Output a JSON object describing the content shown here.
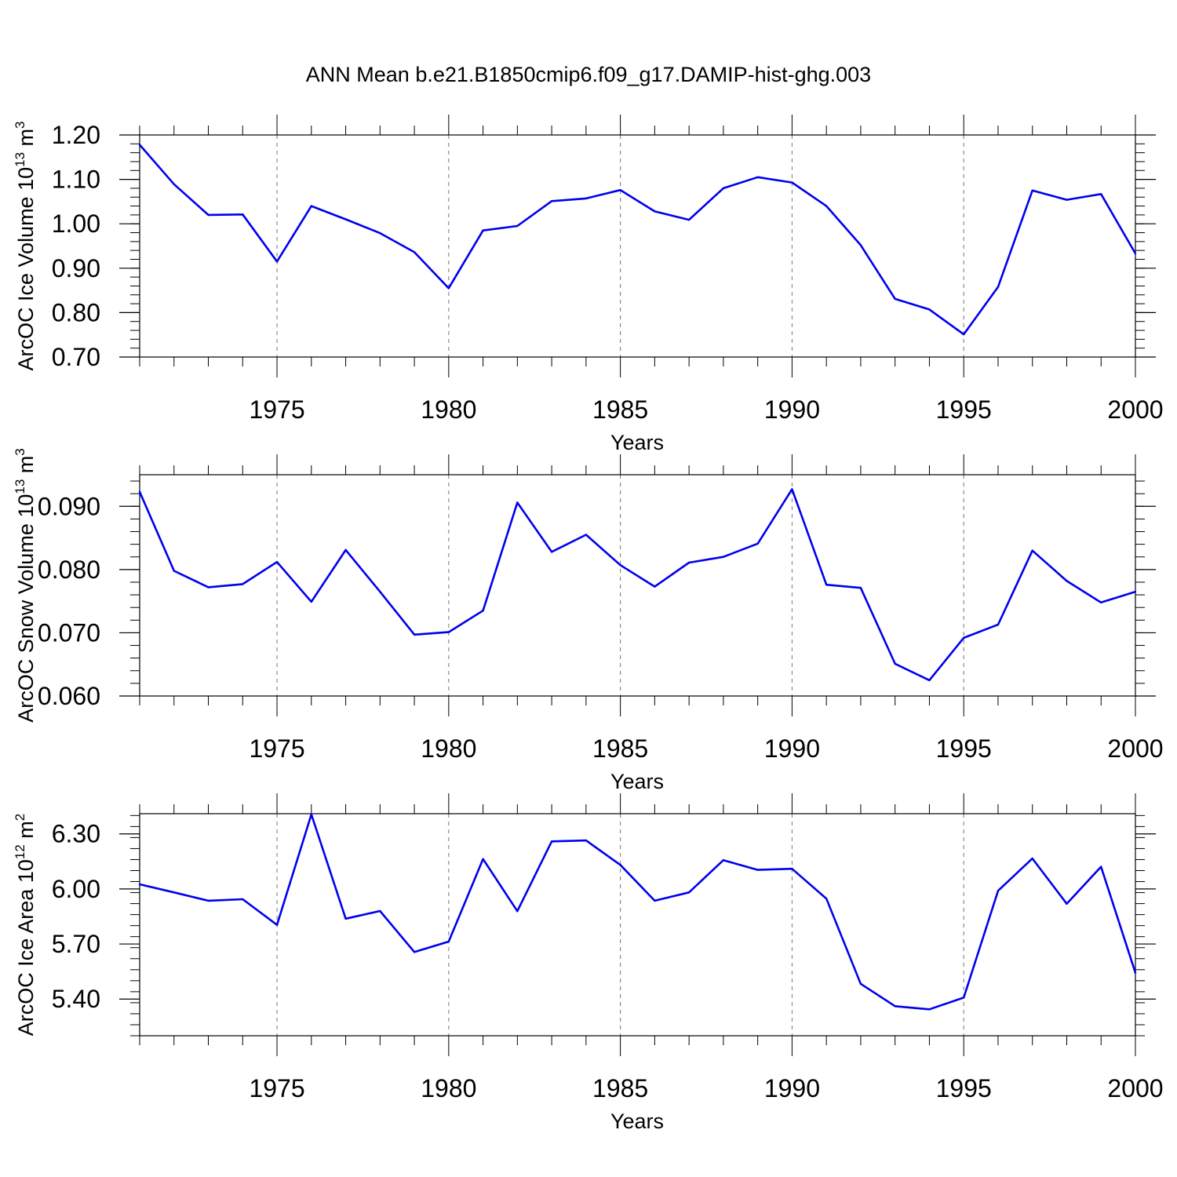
{
  "title": "ANN Mean b.e21.B1850cmip6.f09_g17.DAMIP-hist-ghg.003",
  "chart_data": [
    {
      "type": "line",
      "xlabel": "Years",
      "ylabel": {
        "text": "ArcOC Ice Volume 10",
        "exp": "13",
        "unit": " m",
        "unit_exp": "3"
      },
      "xlim": [
        1971,
        2000
      ],
      "ylim": [
        0.7,
        1.2
      ],
      "yticks": [
        0.7,
        0.8,
        0.9,
        1.0,
        1.1,
        1.2
      ],
      "ytick_labels": [
        "0.70",
        "0.80",
        "0.90",
        "1.00",
        "1.10",
        "1.20"
      ],
      "yminor_step": 0.02,
      "xticks": [
        1975,
        1980,
        1985,
        1990,
        1995,
        2000
      ],
      "xtick_labels": [
        "1975",
        "1980",
        "1985",
        "1990",
        "1995",
        "2000"
      ],
      "grid": "vertical dashed at major x ticks",
      "color": "#0000ee",
      "x": [
        1971,
        1972,
        1973,
        1974,
        1975,
        1976,
        1977,
        1978,
        1979,
        1980,
        1981,
        1982,
        1983,
        1984,
        1985,
        1986,
        1987,
        1988,
        1989,
        1990,
        1991,
        1992,
        1993,
        1994,
        1995,
        1996,
        1997,
        1998,
        1999,
        2000
      ],
      "values": [
        1.178,
        1.089,
        1.02,
        1.021,
        0.915,
        1.04,
        1.01,
        0.979,
        0.936,
        0.855,
        0.985,
        0.995,
        1.051,
        1.057,
        1.076,
        1.028,
        1.009,
        1.08,
        1.105,
        1.093,
        1.04,
        0.952,
        0.831,
        0.807,
        0.751,
        0.858,
        1.075,
        1.054,
        1.067,
        0.933
      ]
    },
    {
      "type": "line",
      "xlabel": "Years",
      "ylabel": {
        "text": "ArcOC Snow Volume 10",
        "exp": "13",
        "unit": " m",
        "unit_exp": "3"
      },
      "xlim": [
        1971,
        2000
      ],
      "ylim": [
        0.06,
        0.095
      ],
      "yticks": [
        0.06,
        0.07,
        0.08,
        0.09
      ],
      "ytick_labels": [
        "0.060",
        "0.070",
        "0.080",
        "0.090"
      ],
      "yminor_step": 0.002,
      "xticks": [
        1975,
        1980,
        1985,
        1990,
        1995,
        2000
      ],
      "xtick_labels": [
        "1975",
        "1980",
        "1985",
        "1990",
        "1995",
        "2000"
      ],
      "grid": "vertical dashed at major x ticks",
      "color": "#0000ee",
      "x": [
        1971,
        1972,
        1973,
        1974,
        1975,
        1976,
        1977,
        1978,
        1979,
        1980,
        1981,
        1982,
        1983,
        1984,
        1985,
        1986,
        1987,
        1988,
        1989,
        1990,
        1991,
        1992,
        1993,
        1994,
        1995,
        1996,
        1997,
        1998,
        1999,
        2000
      ],
      "values": [
        0.0923,
        0.0798,
        0.0772,
        0.0777,
        0.0812,
        0.0749,
        0.0831,
        0.0765,
        0.0697,
        0.0701,
        0.0735,
        0.0906,
        0.0828,
        0.0855,
        0.0807,
        0.0773,
        0.0811,
        0.082,
        0.0841,
        0.0927,
        0.0776,
        0.0771,
        0.0651,
        0.0625,
        0.0692,
        0.0713,
        0.083,
        0.0782,
        0.0748,
        0.0765
      ]
    },
    {
      "type": "line",
      "xlabel": "Years",
      "ylabel": {
        "text": "ArcOC Ice Area 10",
        "exp": "12",
        "unit": " m",
        "unit_exp": "2"
      },
      "xlim": [
        1971,
        2000
      ],
      "ylim": [
        5.2,
        6.41
      ],
      "yticks": [
        5.4,
        5.7,
        6.0,
        6.3
      ],
      "ytick_labels": [
        "5.40",
        "5.70",
        "6.00",
        "6.30"
      ],
      "yminor_step": 0.06,
      "xticks": [
        1975,
        1980,
        1985,
        1990,
        1995,
        2000
      ],
      "xtick_labels": [
        "1975",
        "1980",
        "1985",
        "1990",
        "1995",
        "2000"
      ],
      "grid": "vertical dashed at major x ticks",
      "color": "#0000ee",
      "x": [
        1971,
        1972,
        1973,
        1974,
        1975,
        1976,
        1977,
        1978,
        1979,
        1980,
        1981,
        1982,
        1983,
        1984,
        1985,
        1986,
        1987,
        1988,
        1989,
        1990,
        1991,
        1992,
        1993,
        1994,
        1995,
        1996,
        1997,
        1998,
        1999,
        2000
      ],
      "values": [
        6.025,
        5.981,
        5.936,
        5.944,
        5.804,
        6.406,
        5.838,
        5.88,
        5.656,
        5.713,
        6.163,
        5.879,
        6.259,
        6.264,
        6.131,
        5.936,
        5.981,
        6.157,
        6.104,
        6.11,
        5.947,
        5.483,
        5.361,
        5.344,
        5.408,
        5.99,
        6.166,
        5.919,
        6.121,
        5.543
      ]
    }
  ]
}
